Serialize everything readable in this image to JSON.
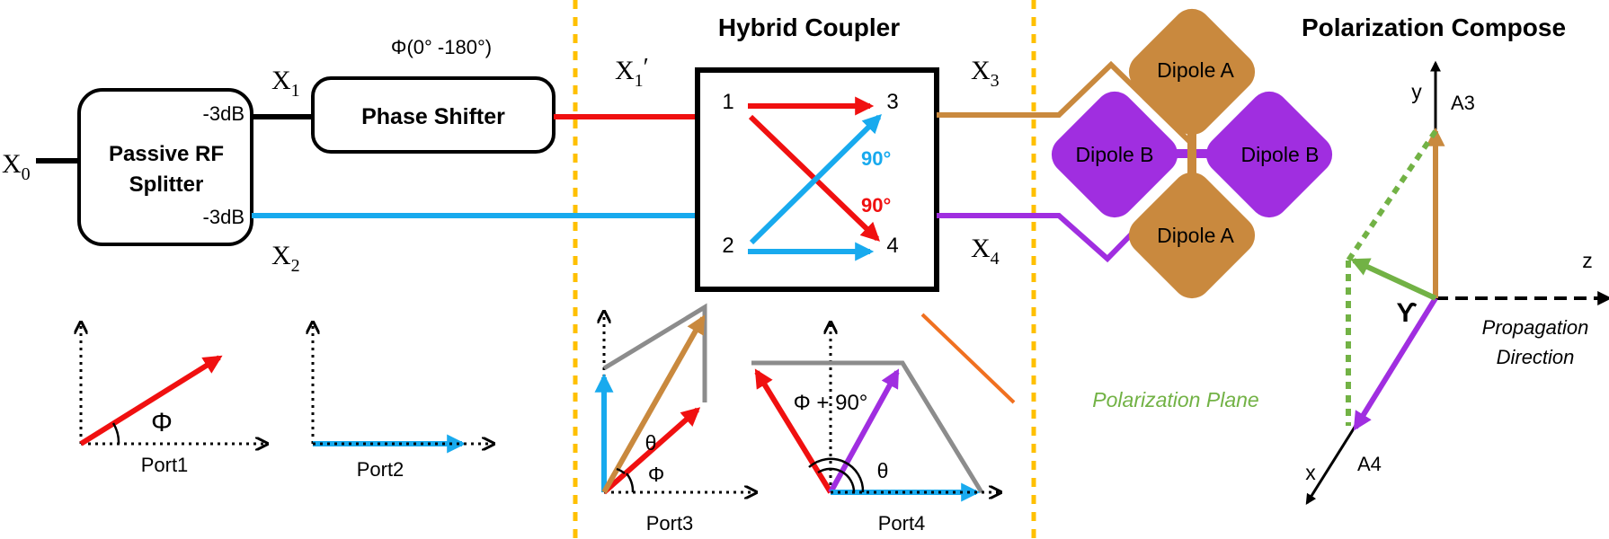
{
  "titles": {
    "hybrid_coupler": "Hybrid Coupler",
    "polarization_compose": "Polarization Compose"
  },
  "splitter": {
    "line1": "Passive RF",
    "line2": "Splitter",
    "port_top_gain": "-3dB",
    "port_bottom_gain": "-3dB"
  },
  "phase_shifter": {
    "label": "Phase Shifter",
    "range": "Φ(0° -180°)"
  },
  "signals": {
    "x0": {
      "base": "X",
      "sub": "0"
    },
    "x1": {
      "base": "X",
      "sub": "1"
    },
    "x1_prime": {
      "base": "X",
      "sub": "1",
      "suffix": "′"
    },
    "x2": {
      "base": "X",
      "sub": "2"
    },
    "x3": {
      "base": "X",
      "sub": "3"
    },
    "x4": {
      "base": "X",
      "sub": "4"
    }
  },
  "coupler": {
    "port1": "1",
    "port2": "2",
    "port3": "3",
    "port4": "4",
    "phase_blue": "90°",
    "phase_red": "90°"
  },
  "antenna": {
    "dipole_a_top": "Dipole A",
    "dipole_a_bottom": "Dipole A",
    "dipole_b_left": "Dipole B",
    "dipole_b_right": "Dipole B"
  },
  "polarization_plane_label": "Polarization Plane",
  "phasor_plots": {
    "port1": {
      "label": "Port1",
      "angle": "Φ"
    },
    "port2": {
      "label": "Port2"
    },
    "port3": {
      "label": "Port3",
      "theta": "θ",
      "phi": "Φ"
    },
    "port4": {
      "label": "Port4",
      "theta": "θ",
      "angle": "Φ + 90°"
    }
  },
  "axes3d": {
    "y": "y",
    "x": "x",
    "z": "z",
    "a3": "A3",
    "a4": "A4",
    "gamma": "ϒ",
    "propagation_line1": "Propagation",
    "propagation_line2": "Direction"
  },
  "colors": {
    "red": "#f01010",
    "blue": "#18aaee",
    "brown": "#c9893e",
    "purple": "#a02ee0",
    "gray": "#8c8c8c",
    "green": "#72b245",
    "orange_dash": "#ffc000",
    "orange_line": "#f07020",
    "black": "#000000"
  }
}
